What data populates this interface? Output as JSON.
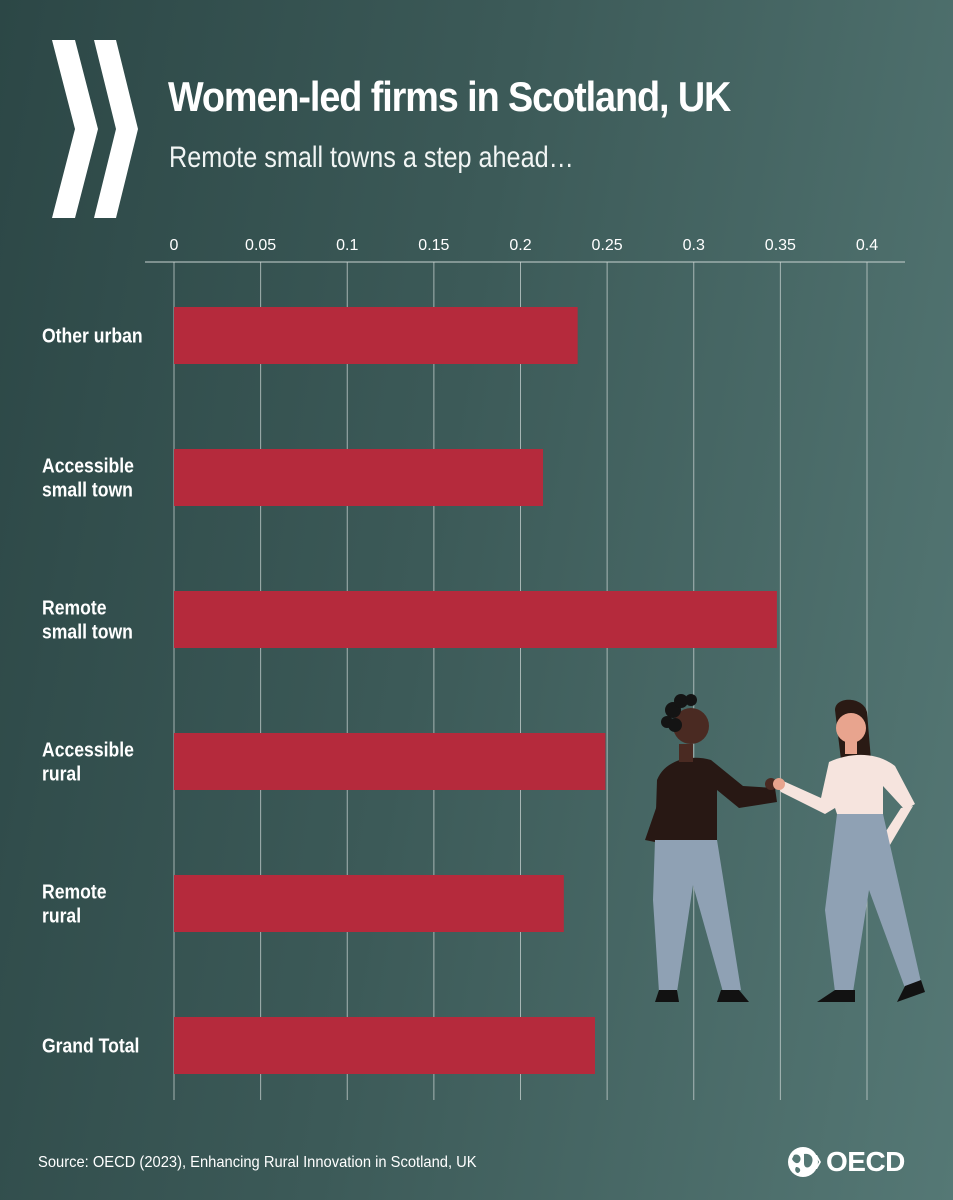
{
  "header": {
    "title": "Women-led firms in Scotland, UK",
    "subtitle": "Remote small towns a step ahead…"
  },
  "chart_data": {
    "type": "bar",
    "orientation": "horizontal",
    "title": "Women-led firms in Scotland, UK",
    "subtitle": "Remote small towns a step ahead…",
    "categories": [
      "Other urban",
      "Accessible small town",
      "Remote small town",
      "Accessible rural",
      "Remote rural",
      "Grand Total"
    ],
    "category_lines": [
      [
        "Other urban"
      ],
      [
        "Accessible",
        "small town"
      ],
      [
        "Remote",
        "small town"
      ],
      [
        "Accessible",
        "rural"
      ],
      [
        "Remote",
        "rural"
      ],
      [
        "Grand Total"
      ]
    ],
    "values": [
      0.233,
      0.213,
      0.348,
      0.249,
      0.225,
      0.243
    ],
    "xlim": [
      0,
      0.4
    ],
    "xticks": [
      0,
      0.05,
      0.1,
      0.15,
      0.2,
      0.25,
      0.3,
      0.35,
      0.4
    ],
    "xtick_labels": [
      "0",
      "0.05",
      "0.1",
      "0.15",
      "0.2",
      "0.25",
      "0.3",
      "0.35",
      "0.4"
    ],
    "axis_position": "top",
    "grid": true,
    "legend": "none",
    "bar_color": "#b52a3c"
  },
  "footer": {
    "source": "Source: OECD (2023), Enhancing Rural Innovation in Scotland, UK",
    "logo_text": "OECD"
  },
  "illustration": {
    "icon": "two-women-holding-hands-illustration"
  }
}
